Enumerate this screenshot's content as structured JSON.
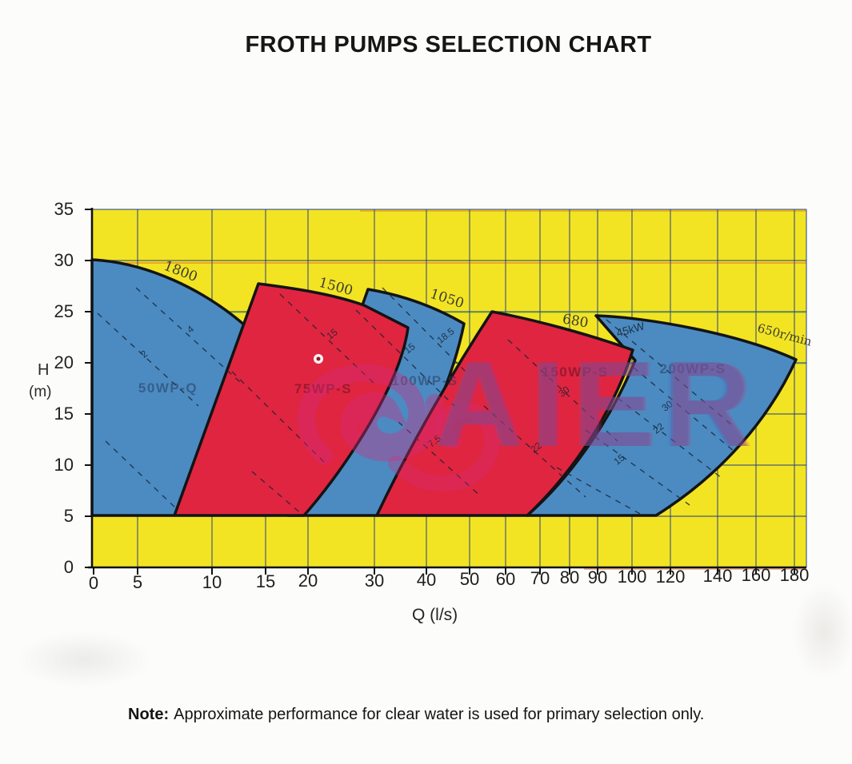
{
  "page": {
    "title": "FROTH PUMPS SELECTION CHART",
    "note_label": "Note:",
    "note_text": "Approximate performance for clear water is used for primary selection only."
  },
  "watermark": {
    "text": "AIER"
  },
  "axes": {
    "x": {
      "label": "Q (l/s)",
      "ticks": [
        "0",
        "5",
        "10",
        "15",
        "20",
        "30",
        "40",
        "50",
        "60",
        "70",
        "80",
        "90",
        "100",
        "120",
        "140",
        "160",
        "180"
      ]
    },
    "y": {
      "label_top": "H",
      "label_bottom": "(m)",
      "ticks": [
        "35",
        "30",
        "25",
        "20",
        "15",
        "10",
        "5",
        "0"
      ]
    }
  },
  "chart_data": {
    "type": "area",
    "title": "FROTH PUMPS SELECTION CHART",
    "xlabel": "Q (l/s)",
    "ylabel": "H (m)",
    "xlim": [
      0,
      180
    ],
    "ylim": [
      0,
      35
    ],
    "x_ticks": [
      0,
      5,
      10,
      15,
      20,
      30,
      40,
      50,
      60,
      70,
      80,
      90,
      100,
      120,
      140,
      160,
      180
    ],
    "y_ticks": [
      0,
      5,
      10,
      15,
      20,
      25,
      30,
      35
    ],
    "grid": true,
    "x_scale": "non-linear (compressed above 20 l/s)",
    "background_color": "#f2e422",
    "region_colors": {
      "blue": "#4b8bc2",
      "red": "#e02540"
    },
    "note": "Approximate performance for clear water is used for primary selection only.",
    "regions": [
      {
        "pump": "50WP-Q",
        "speed_label": "1800",
        "fill": "blue",
        "envelope": {
          "shutoff_head_m": 30.3,
          "top_tip": {
            "q": 14,
            "h": 23
          },
          "q_at_h5": [
            0,
            7.5
          ]
        },
        "power_labels": [
          "4",
          "2"
        ]
      },
      {
        "pump": "75WP-S",
        "speed_label": "1500",
        "fill": "red",
        "pump_label_obscured_by_watermark": true,
        "envelope": {
          "shutoff_head_m": 27.8,
          "top_tip": {
            "q": 33,
            "h": 23.5
          },
          "q_at_h5": [
            7.5,
            19.5
          ]
        },
        "power_labels": [
          "15"
        ]
      },
      {
        "pump": "100WP-S",
        "speed_label": "1050",
        "fill": "blue",
        "envelope": {
          "shutoff_head_m": 27.2,
          "top_tip": {
            "q": 49,
            "h": 23.8
          },
          "q_at_h5": [
            17.5,
            30
          ]
        },
        "power_labels": [
          "18.5",
          "15",
          "7.5"
        ]
      },
      {
        "pump": "150WP-S",
        "speed_label": "680",
        "fill": "red",
        "envelope": {
          "shutoff_head_m": 25.0,
          "top_tip": {
            "q": 94,
            "h": 22.5
          },
          "q_at_h5": [
            30,
            63
          ]
        },
        "power_labels": [
          "30",
          "22"
        ]
      },
      {
        "pump": "200WP-S",
        "speed_label": "650r/min",
        "fill": "blue",
        "envelope": {
          "shutoff_head_m": 24.8,
          "top_tip": {
            "q": 180,
            "h": 20.5
          },
          "q_at_h5": [
            63,
            104
          ]
        },
        "power_labels": [
          "45kW",
          "30",
          "22",
          "15"
        ]
      }
    ],
    "power_line_labels": [
      "4",
      "2",
      "15",
      "18.5",
      "15",
      "7.5",
      "30",
      "22",
      "45kW",
      "30",
      "22",
      "15"
    ]
  }
}
